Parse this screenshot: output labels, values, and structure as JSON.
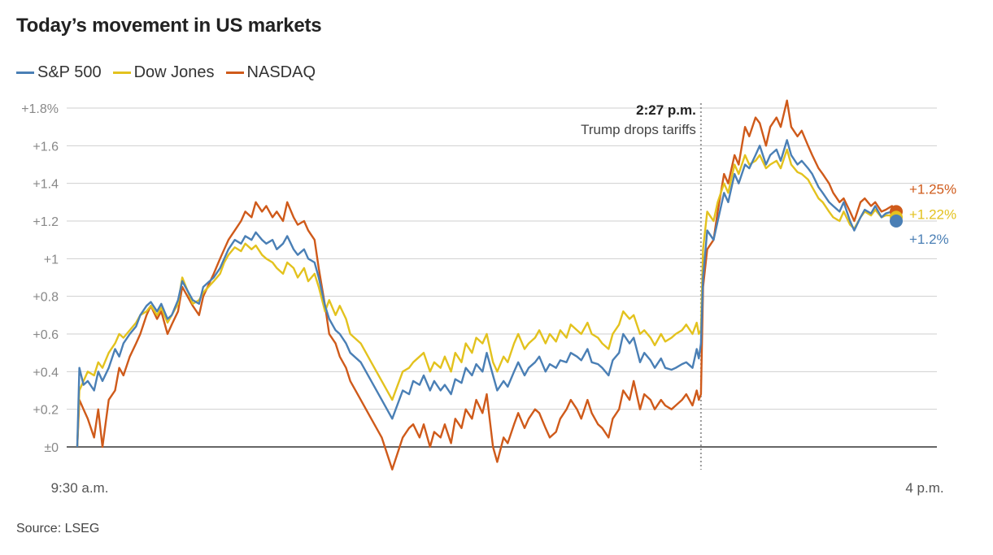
{
  "chart_data": {
    "type": "line",
    "title": "Today’s movement in US markets",
    "source": "Source: LSEG",
    "x_start_label": "9:30 a.m.",
    "x_end_label": "4 p.m.",
    "x_unit": "minutes after 9:30 a.m.",
    "xlim": [
      0,
      390
    ],
    "ylim": [
      0,
      1.8
    ],
    "y_ticks": [
      0,
      0.2,
      0.4,
      0.6,
      0.8,
      1.0,
      1.2,
      1.4,
      1.6,
      1.8
    ],
    "y_tick_labels": [
      "±0",
      "+0.2",
      "+0.4",
      "+0.6",
      "+0.8",
      "+1",
      "+1.2",
      "+1.4",
      "+1.6",
      "+1.8%"
    ],
    "grid": true,
    "legend_position": "top-left",
    "annotation": {
      "x": 297,
      "time_label": "2:27 p.m.",
      "text": "Trump drops tariffs"
    },
    "series": [
      {
        "name": "S&P 500",
        "color": "#4a7fb5",
        "end_label": "+1.2%",
        "end_value": 1.2,
        "x": [
          0,
          1,
          3,
          5,
          8,
          10,
          12,
          15,
          18,
          20,
          22,
          25,
          28,
          30,
          33,
          35,
          38,
          40,
          43,
          45,
          48,
          50,
          55,
          58,
          60,
          65,
          68,
          70,
          72,
          75,
          78,
          80,
          83,
          85,
          88,
          90,
          93,
          95,
          98,
          100,
          103,
          105,
          108,
          110,
          113,
          115,
          118,
          120,
          123,
          125,
          128,
          130,
          135,
          140,
          145,
          150,
          155,
          158,
          160,
          163,
          165,
          168,
          170,
          173,
          175,
          178,
          180,
          183,
          185,
          188,
          190,
          193,
          195,
          198,
          200,
          203,
          205,
          208,
          210,
          213,
          215,
          218,
          220,
          223,
          225,
          228,
          230,
          233,
          235,
          238,
          240,
          243,
          245,
          248,
          250,
          253,
          255,
          258,
          260,
          263,
          265,
          268,
          270,
          273,
          275,
          278,
          280,
          283,
          285,
          288,
          290,
          293,
          295,
          296,
          297,
          298,
          300,
          303,
          305,
          308,
          310,
          313,
          315,
          318,
          320,
          323,
          325,
          328,
          330,
          333,
          335,
          338,
          340,
          343,
          345,
          348,
          350,
          353,
          355,
          358,
          360,
          363,
          365,
          368,
          370,
          373,
          375,
          378,
          380,
          383,
          385,
          388,
          390
        ],
        "values": [
          0,
          0.42,
          0.33,
          0.35,
          0.3,
          0.4,
          0.35,
          0.42,
          0.52,
          0.48,
          0.55,
          0.6,
          0.64,
          0.7,
          0.75,
          0.77,
          0.72,
          0.76,
          0.68,
          0.7,
          0.78,
          0.88,
          0.78,
          0.76,
          0.85,
          0.9,
          0.95,
          1.0,
          1.05,
          1.1,
          1.08,
          1.12,
          1.1,
          1.14,
          1.1,
          1.08,
          1.1,
          1.05,
          1.08,
          1.12,
          1.05,
          1.02,
          1.05,
          1.0,
          0.98,
          0.9,
          0.75,
          0.68,
          0.62,
          0.6,
          0.55,
          0.5,
          0.45,
          0.35,
          0.25,
          0.15,
          0.3,
          0.28,
          0.35,
          0.33,
          0.38,
          0.3,
          0.35,
          0.3,
          0.33,
          0.28,
          0.36,
          0.34,
          0.42,
          0.38,
          0.44,
          0.4,
          0.5,
          0.38,
          0.3,
          0.35,
          0.32,
          0.4,
          0.45,
          0.38,
          0.42,
          0.45,
          0.48,
          0.4,
          0.44,
          0.42,
          0.46,
          0.45,
          0.5,
          0.48,
          0.46,
          0.52,
          0.45,
          0.44,
          0.42,
          0.38,
          0.46,
          0.5,
          0.6,
          0.55,
          0.58,
          0.45,
          0.5,
          0.46,
          0.42,
          0.47,
          0.42,
          0.41,
          0.42,
          0.44,
          0.45,
          0.42,
          0.52,
          0.47,
          0.55,
          0.9,
          1.15,
          1.1,
          1.2,
          1.35,
          1.3,
          1.45,
          1.4,
          1.5,
          1.48,
          1.55,
          1.6,
          1.5,
          1.55,
          1.58,
          1.52,
          1.63,
          1.55,
          1.5,
          1.52,
          1.48,
          1.45,
          1.38,
          1.35,
          1.3,
          1.28,
          1.25,
          1.3,
          1.2,
          1.15,
          1.22,
          1.26,
          1.24,
          1.28,
          1.22,
          1.24,
          1.25,
          1.2
        ]
      },
      {
        "name": "Dow Jones",
        "color": "#e3c21e",
        "end_label": "+1.22%",
        "end_value": 1.22,
        "x": [
          0,
          1,
          3,
          5,
          8,
          10,
          12,
          15,
          18,
          20,
          22,
          25,
          28,
          30,
          33,
          35,
          38,
          40,
          43,
          45,
          48,
          50,
          55,
          58,
          60,
          65,
          68,
          70,
          72,
          75,
          78,
          80,
          83,
          85,
          88,
          90,
          93,
          95,
          98,
          100,
          103,
          105,
          108,
          110,
          113,
          115,
          118,
          120,
          123,
          125,
          128,
          130,
          135,
          140,
          145,
          150,
          155,
          158,
          160,
          163,
          165,
          168,
          170,
          173,
          175,
          178,
          180,
          183,
          185,
          188,
          190,
          193,
          195,
          198,
          200,
          203,
          205,
          208,
          210,
          213,
          215,
          218,
          220,
          223,
          225,
          228,
          230,
          233,
          235,
          238,
          240,
          243,
          245,
          248,
          250,
          253,
          255,
          258,
          260,
          263,
          265,
          268,
          270,
          273,
          275,
          278,
          280,
          283,
          285,
          288,
          290,
          293,
          295,
          296,
          297,
          298,
          300,
          303,
          305,
          308,
          310,
          313,
          315,
          318,
          320,
          323,
          325,
          328,
          330,
          333,
          335,
          338,
          340,
          343,
          345,
          348,
          350,
          353,
          355,
          358,
          360,
          363,
          365,
          368,
          370,
          373,
          375,
          378,
          380,
          383,
          385,
          388,
          390
        ],
        "values": [
          0,
          0.3,
          0.35,
          0.4,
          0.38,
          0.45,
          0.42,
          0.5,
          0.55,
          0.6,
          0.58,
          0.62,
          0.66,
          0.7,
          0.72,
          0.75,
          0.7,
          0.74,
          0.66,
          0.7,
          0.76,
          0.9,
          0.76,
          0.78,
          0.82,
          0.88,
          0.92,
          0.98,
          1.02,
          1.06,
          1.04,
          1.08,
          1.05,
          1.07,
          1.02,
          1.0,
          0.98,
          0.95,
          0.92,
          0.98,
          0.95,
          0.9,
          0.95,
          0.88,
          0.92,
          0.85,
          0.72,
          0.78,
          0.7,
          0.75,
          0.68,
          0.6,
          0.55,
          0.45,
          0.35,
          0.25,
          0.4,
          0.42,
          0.45,
          0.48,
          0.5,
          0.4,
          0.45,
          0.42,
          0.48,
          0.4,
          0.5,
          0.45,
          0.55,
          0.5,
          0.58,
          0.55,
          0.6,
          0.45,
          0.4,
          0.48,
          0.45,
          0.55,
          0.6,
          0.52,
          0.55,
          0.58,
          0.62,
          0.55,
          0.6,
          0.56,
          0.62,
          0.58,
          0.65,
          0.62,
          0.6,
          0.66,
          0.6,
          0.58,
          0.55,
          0.52,
          0.6,
          0.65,
          0.72,
          0.68,
          0.7,
          0.6,
          0.62,
          0.58,
          0.54,
          0.6,
          0.56,
          0.58,
          0.6,
          0.62,
          0.65,
          0.6,
          0.66,
          0.6,
          0.62,
          1.05,
          1.25,
          1.2,
          1.3,
          1.4,
          1.35,
          1.5,
          1.45,
          1.55,
          1.5,
          1.52,
          1.55,
          1.48,
          1.5,
          1.52,
          1.48,
          1.58,
          1.5,
          1.46,
          1.45,
          1.42,
          1.38,
          1.32,
          1.3,
          1.25,
          1.22,
          1.2,
          1.25,
          1.18,
          1.16,
          1.22,
          1.25,
          1.23,
          1.26,
          1.22,
          1.23,
          1.23,
          1.22
        ]
      },
      {
        "name": "NASDAQ",
        "color": "#cf5a1a",
        "end_label": "+1.25%",
        "end_value": 1.25,
        "x": [
          0,
          1,
          3,
          5,
          8,
          10,
          12,
          15,
          18,
          20,
          22,
          25,
          28,
          30,
          33,
          35,
          38,
          40,
          43,
          45,
          48,
          50,
          55,
          58,
          60,
          65,
          68,
          70,
          72,
          75,
          78,
          80,
          83,
          85,
          88,
          90,
          93,
          95,
          98,
          100,
          103,
          105,
          108,
          110,
          113,
          115,
          118,
          120,
          123,
          125,
          128,
          130,
          135,
          140,
          145,
          150,
          155,
          158,
          160,
          163,
          165,
          168,
          170,
          173,
          175,
          178,
          180,
          183,
          185,
          188,
          190,
          193,
          195,
          198,
          200,
          203,
          205,
          208,
          210,
          213,
          215,
          218,
          220,
          223,
          225,
          228,
          230,
          233,
          235,
          238,
          240,
          243,
          245,
          248,
          250,
          253,
          255,
          258,
          260,
          263,
          265,
          268,
          270,
          273,
          275,
          278,
          280,
          283,
          285,
          288,
          290,
          293,
          295,
          296,
          297,
          298,
          300,
          303,
          305,
          308,
          310,
          313,
          315,
          318,
          320,
          323,
          325,
          328,
          330,
          333,
          335,
          338,
          340,
          343,
          345,
          348,
          350,
          353,
          355,
          358,
          360,
          363,
          365,
          368,
          370,
          373,
          375,
          378,
          380,
          383,
          385,
          388,
          390
        ],
        "values": [
          0,
          0.25,
          0.2,
          0.15,
          0.05,
          0.2,
          0.0,
          0.25,
          0.3,
          0.42,
          0.38,
          0.48,
          0.55,
          0.6,
          0.7,
          0.75,
          0.68,
          0.72,
          0.6,
          0.65,
          0.72,
          0.85,
          0.75,
          0.7,
          0.8,
          0.92,
          1.0,
          1.05,
          1.1,
          1.15,
          1.2,
          1.25,
          1.22,
          1.3,
          1.25,
          1.28,
          1.22,
          1.25,
          1.2,
          1.3,
          1.22,
          1.18,
          1.2,
          1.15,
          1.1,
          0.95,
          0.75,
          0.6,
          0.55,
          0.48,
          0.42,
          0.35,
          0.25,
          0.15,
          0.05,
          -0.12,
          0.05,
          0.1,
          0.12,
          0.05,
          0.12,
          0.0,
          0.08,
          0.05,
          0.12,
          0.02,
          0.15,
          0.1,
          0.2,
          0.15,
          0.25,
          0.18,
          0.28,
          0.0,
          -0.08,
          0.05,
          0.02,
          0.12,
          0.18,
          0.1,
          0.15,
          0.2,
          0.18,
          0.1,
          0.05,
          0.08,
          0.15,
          0.2,
          0.25,
          0.2,
          0.15,
          0.25,
          0.18,
          0.12,
          0.1,
          0.05,
          0.15,
          0.2,
          0.3,
          0.25,
          0.35,
          0.2,
          0.28,
          0.25,
          0.2,
          0.25,
          0.22,
          0.2,
          0.22,
          0.25,
          0.28,
          0.22,
          0.3,
          0.25,
          0.28,
          0.85,
          1.05,
          1.1,
          1.25,
          1.45,
          1.4,
          1.55,
          1.5,
          1.7,
          1.65,
          1.75,
          1.72,
          1.6,
          1.7,
          1.75,
          1.7,
          1.84,
          1.7,
          1.65,
          1.68,
          1.6,
          1.55,
          1.48,
          1.45,
          1.4,
          1.35,
          1.3,
          1.32,
          1.25,
          1.2,
          1.3,
          1.32,
          1.28,
          1.3,
          1.25,
          1.26,
          1.28,
          1.25
        ]
      }
    ]
  }
}
